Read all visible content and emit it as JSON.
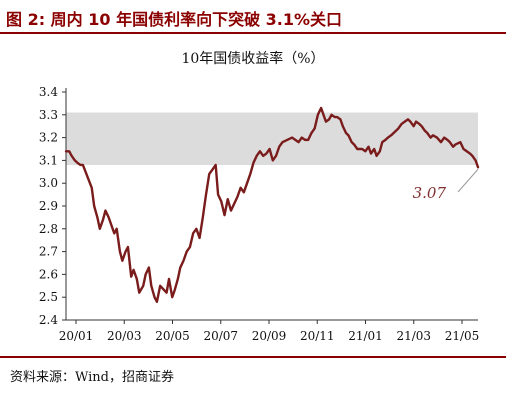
{
  "header": {
    "figure_title": "图 2: 周内 10 年国债利率向下突破 3.1%关口"
  },
  "footer": {
    "source": "资料来源：Wind，招商证券"
  },
  "chart_data": {
    "type": "line",
    "title": "10年国债收益率（%）",
    "xlabel": "",
    "ylabel": "",
    "ylim": [
      2.4,
      3.4
    ],
    "yticks": [
      "3.4",
      "3.3",
      "3.2",
      "3.1",
      "3.0",
      "2.9",
      "2.8",
      "2.7",
      "2.6",
      "2.5",
      "2.4"
    ],
    "xticks": [
      "20/01",
      "20/03",
      "20/05",
      "20/07",
      "20/09",
      "20/11",
      "21/01",
      "21/03",
      "21/05"
    ],
    "band": {
      "y_from": 3.08,
      "y_to": 3.31,
      "color": "#dcdcdc"
    },
    "line_color": "#7a1c1c",
    "last_value_label": "3.07",
    "grid": false,
    "legend": "none",
    "series": [
      {
        "x": [
          "2020-01-02",
          "2020-01-06",
          "2020-01-09",
          "2020-01-13",
          "2020-01-16",
          "2020-01-20",
          "2020-01-23",
          "2020-02-03",
          "2020-02-06",
          "2020-02-10",
          "2020-02-13",
          "2020-02-17",
          "2020-02-20",
          "2020-02-24",
          "2020-02-27",
          "2020-03-02",
          "2020-03-05",
          "2020-03-09",
          "2020-03-12",
          "2020-03-16",
          "2020-03-19",
          "2020-03-23",
          "2020-03-26",
          "2020-03-30",
          "2020-04-02",
          "2020-04-07",
          "2020-04-10",
          "2020-04-14",
          "2020-04-17",
          "2020-04-21",
          "2020-04-24",
          "2020-04-28",
          "2020-05-06",
          "2020-05-09",
          "2020-05-13",
          "2020-05-16",
          "2020-05-20",
          "2020-05-23",
          "2020-05-27",
          "2020-05-31",
          "2020-06-04",
          "2020-06-08",
          "2020-06-12",
          "2020-06-16",
          "2020-06-20",
          "2020-06-24",
          "2020-06-28",
          "2020-07-02",
          "2020-07-06",
          "2020-07-09",
          "2020-07-13",
          "2020-07-17",
          "2020-07-21",
          "2020-07-25",
          "2020-07-29",
          "2020-08-02",
          "2020-08-06",
          "2020-08-10",
          "2020-08-14",
          "2020-08-18",
          "2020-08-22",
          "2020-08-26",
          "2020-08-30",
          "2020-09-03",
          "2020-09-07",
          "2020-09-11",
          "2020-09-15",
          "2020-09-19",
          "2020-09-23",
          "2020-09-27",
          "2020-10-09",
          "2020-10-13",
          "2020-10-17",
          "2020-10-21",
          "2020-10-25",
          "2020-10-29",
          "2020-11-02",
          "2020-11-06",
          "2020-11-10",
          "2020-11-14",
          "2020-11-17",
          "2020-11-20",
          "2020-11-24",
          "2020-11-27",
          "2020-12-01",
          "2020-12-04",
          "2020-12-08",
          "2020-12-11",
          "2020-12-15",
          "2020-12-18",
          "2020-12-22",
          "2020-12-25",
          "2020-12-29",
          "2021-01-04",
          "2021-01-08",
          "2021-01-12",
          "2021-01-15",
          "2021-01-19",
          "2021-01-22",
          "2021-01-26",
          "2021-01-29",
          "2021-02-02",
          "2021-02-05",
          "2021-02-09",
          "2021-02-18",
          "2021-02-22",
          "2021-02-26",
          "2021-03-02",
          "2021-03-05",
          "2021-03-09",
          "2021-03-12",
          "2021-03-16",
          "2021-03-19",
          "2021-03-23",
          "2021-03-26",
          "2021-03-30",
          "2021-04-02",
          "2021-04-07",
          "2021-04-12",
          "2021-04-16",
          "2021-04-20",
          "2021-04-23",
          "2021-04-27",
          "2021-04-30",
          "2021-05-06",
          "2021-05-10",
          "2021-05-14",
          "2021-05-18",
          "2021-05-21",
          "2021-05-25",
          "2021-05-28"
        ],
        "values": [
          3.14,
          3.14,
          3.12,
          3.1,
          3.09,
          3.08,
          3.08,
          2.98,
          2.9,
          2.85,
          2.8,
          2.84,
          2.88,
          2.85,
          2.82,
          2.78,
          2.8,
          2.7,
          2.66,
          2.7,
          2.72,
          2.59,
          2.62,
          2.58,
          2.52,
          2.55,
          2.6,
          2.63,
          2.55,
          2.5,
          2.48,
          2.55,
          2.52,
          2.58,
          2.5,
          2.53,
          2.58,
          2.63,
          2.66,
          2.7,
          2.72,
          2.78,
          2.8,
          2.76,
          2.85,
          2.95,
          3.04,
          3.06,
          3.08,
          2.95,
          2.92,
          2.86,
          2.93,
          2.88,
          2.91,
          2.94,
          2.98,
          2.96,
          3.0,
          3.04,
          3.09,
          3.12,
          3.14,
          3.12,
          3.13,
          3.15,
          3.1,
          3.12,
          3.16,
          3.18,
          3.2,
          3.19,
          3.18,
          3.2,
          3.19,
          3.19,
          3.22,
          3.24,
          3.3,
          3.33,
          3.3,
          3.27,
          3.28,
          3.3,
          3.29,
          3.29,
          3.28,
          3.25,
          3.22,
          3.21,
          3.18,
          3.17,
          3.15,
          3.15,
          3.14,
          3.16,
          3.13,
          3.15,
          3.12,
          3.14,
          3.18,
          3.19,
          3.2,
          3.21,
          3.24,
          3.26,
          3.27,
          3.28,
          3.27,
          3.25,
          3.27,
          3.26,
          3.25,
          3.23,
          3.22,
          3.2,
          3.21,
          3.2,
          3.18,
          3.2,
          3.19,
          3.18,
          3.16,
          3.17,
          3.18,
          3.15,
          3.14,
          3.13,
          3.12,
          3.1,
          3.07
        ]
      }
    ]
  }
}
